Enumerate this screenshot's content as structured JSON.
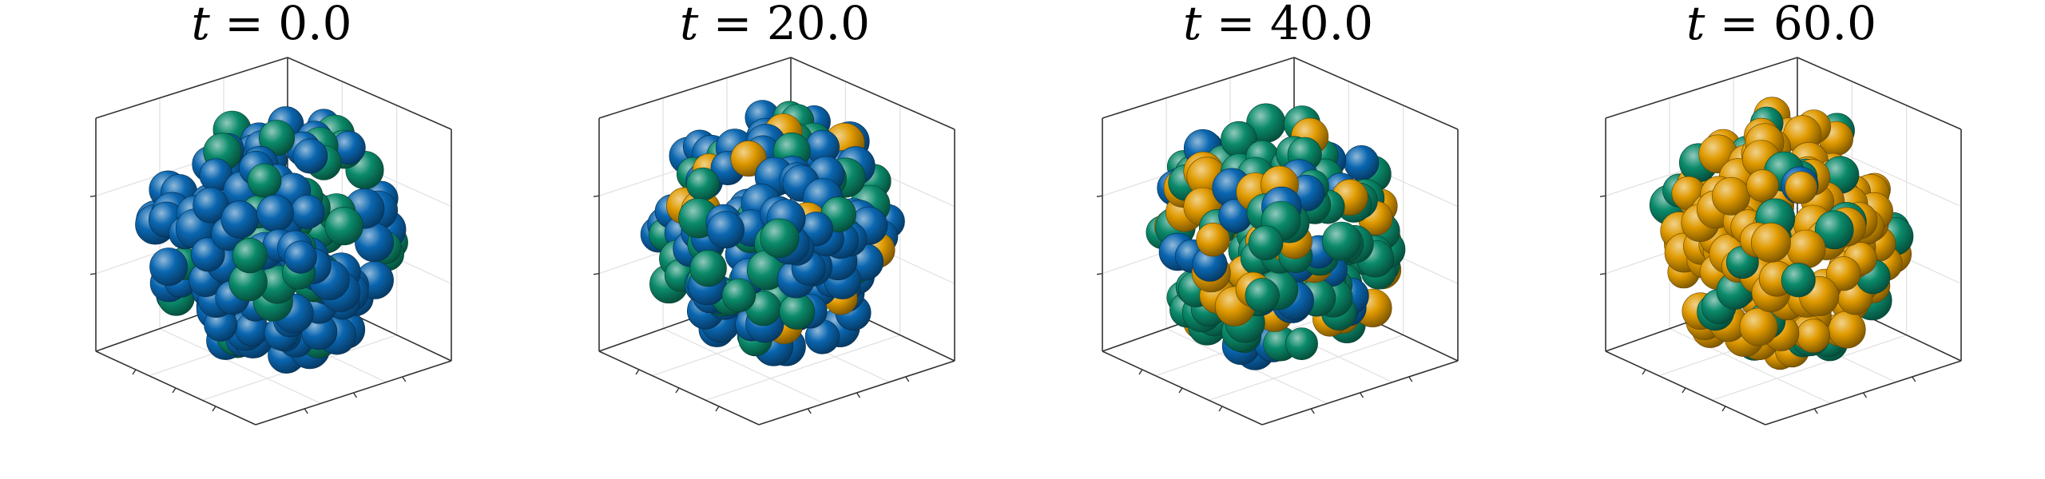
{
  "figure": {
    "title_var": "t",
    "title_sep": " = ",
    "background": "#ffffff"
  },
  "chart_data": [
    {
      "type": "scatter",
      "subtype": "3d-sphere-cluster",
      "title": "t = 0.0",
      "time": "0.0",
      "grid": true,
      "legend": "none",
      "composition": {
        "blue": 0.78,
        "green": 0.22,
        "orange": 0.0
      }
    },
    {
      "type": "scatter",
      "subtype": "3d-sphere-cluster",
      "title": "t = 20.0",
      "time": "20.0",
      "grid": true,
      "legend": "none",
      "composition": {
        "blue": 0.62,
        "green": 0.26,
        "orange": 0.12
      }
    },
    {
      "type": "scatter",
      "subtype": "3d-sphere-cluster",
      "title": "t = 40.0",
      "time": "40.0",
      "grid": true,
      "legend": "none",
      "composition": {
        "blue": 0.22,
        "green": 0.5,
        "orange": 0.28
      }
    },
    {
      "type": "scatter",
      "subtype": "3d-sphere-cluster",
      "title": "t = 60.0",
      "time": "60.0",
      "grid": true,
      "legend": "none",
      "composition": {
        "blue": 0.02,
        "green": 0.22,
        "orange": 0.76
      }
    }
  ],
  "colors": {
    "blue": "#0a66b0",
    "green": "#0a8a6a",
    "orange": "#e09a00",
    "axis": "#333333",
    "grid": "#e2e2e2"
  }
}
